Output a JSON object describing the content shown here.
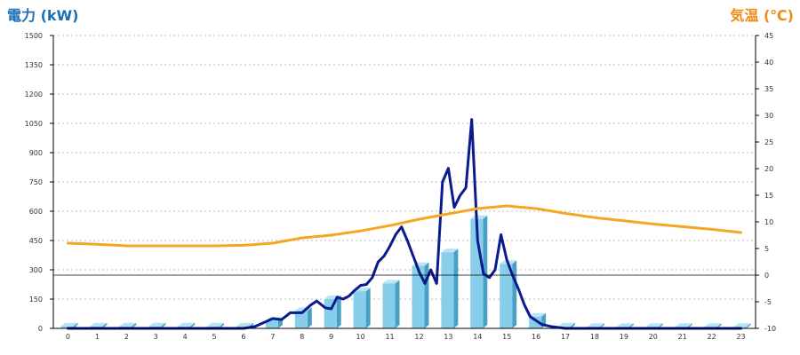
{
  "chart_data": {
    "type": "bar",
    "left_axis_title": "電力 (kW)",
    "right_axis_title": "気温 (℃)",
    "colors": {
      "left_title": "#1a6eb5",
      "right_title": "#ee8a16",
      "bar_front": "#87ceeb",
      "bar_side": "#4a9fc4",
      "bar_top": "#b8e4f5",
      "power_line": "#0b1a8c",
      "temp_line": "#f5a623",
      "grid": "#bbbbbb"
    },
    "grid": true,
    "categories": [
      "0",
      "1",
      "2",
      "3",
      "4",
      "5",
      "6",
      "7",
      "8",
      "9",
      "10",
      "11",
      "12",
      "13",
      "14",
      "15",
      "16",
      "17",
      "18",
      "19",
      "20",
      "21",
      "22",
      "23"
    ],
    "y_left": {
      "min": 0,
      "max": 1500,
      "ticks": [
        "0",
        "150",
        "300",
        "450",
        "600",
        "750",
        "900",
        "1050",
        "1200",
        "1350",
        "1500"
      ]
    },
    "y_right": {
      "min": -10,
      "max": 45,
      "ticks": [
        "-10",
        "-5",
        "0",
        "5",
        "10",
        "15",
        "20",
        "25",
        "30",
        "35",
        "40",
        "45"
      ]
    },
    "series": [
      {
        "kind": "bar",
        "axis": "left",
        "values": [
          10,
          10,
          10,
          10,
          10,
          10,
          10,
          40,
          90,
          150,
          190,
          230,
          320,
          390,
          560,
          330,
          60,
          10,
          8,
          8,
          8,
          8,
          8,
          8
        ]
      },
      {
        "kind": "line",
        "axis": "left",
        "x": [
          0,
          1,
          2,
          3,
          4,
          5,
          6,
          6.4,
          6.7,
          7,
          7.3,
          7.6,
          8,
          8.3,
          8.5,
          8.8,
          9,
          9.2,
          9.4,
          9.6,
          9.8,
          10,
          10.2,
          10.4,
          10.6,
          10.8,
          11,
          11.2,
          11.4,
          11.6,
          11.8,
          12,
          12.2,
          12.4,
          12.6,
          12.8,
          13,
          13.2,
          13.4,
          13.6,
          13.8,
          14,
          14.2,
          14.4,
          14.6,
          14.8,
          15,
          15.2,
          15.4,
          15.6,
          15.8,
          16,
          16.2,
          16.5,
          17,
          17.5,
          18,
          19,
          20,
          21,
          22,
          23
        ],
        "values": [
          0,
          0,
          0,
          0,
          0,
          0,
          0,
          10,
          30,
          50,
          45,
          80,
          80,
          120,
          140,
          105,
          100,
          160,
          150,
          165,
          195,
          220,
          225,
          260,
          340,
          370,
          420,
          480,
          520,
          450,
          370,
          290,
          230,
          300,
          230,
          750,
          820,
          620,
          680,
          720,
          1070,
          450,
          280,
          260,
          300,
          480,
          350,
          270,
          200,
          120,
          60,
          40,
          20,
          10,
          0,
          0,
          0,
          0,
          0,
          0,
          0,
          0
        ]
      },
      {
        "kind": "line",
        "axis": "right",
        "values": [
          6,
          5.8,
          5.5,
          5.5,
          5.5,
          5.5,
          5.6,
          6,
          7,
          7.5,
          8.3,
          9.3,
          10.5,
          11.5,
          12.5,
          13,
          12.5,
          11.6,
          10.8,
          10.2,
          9.6,
          9.1,
          8.6,
          8
        ]
      }
    ]
  }
}
